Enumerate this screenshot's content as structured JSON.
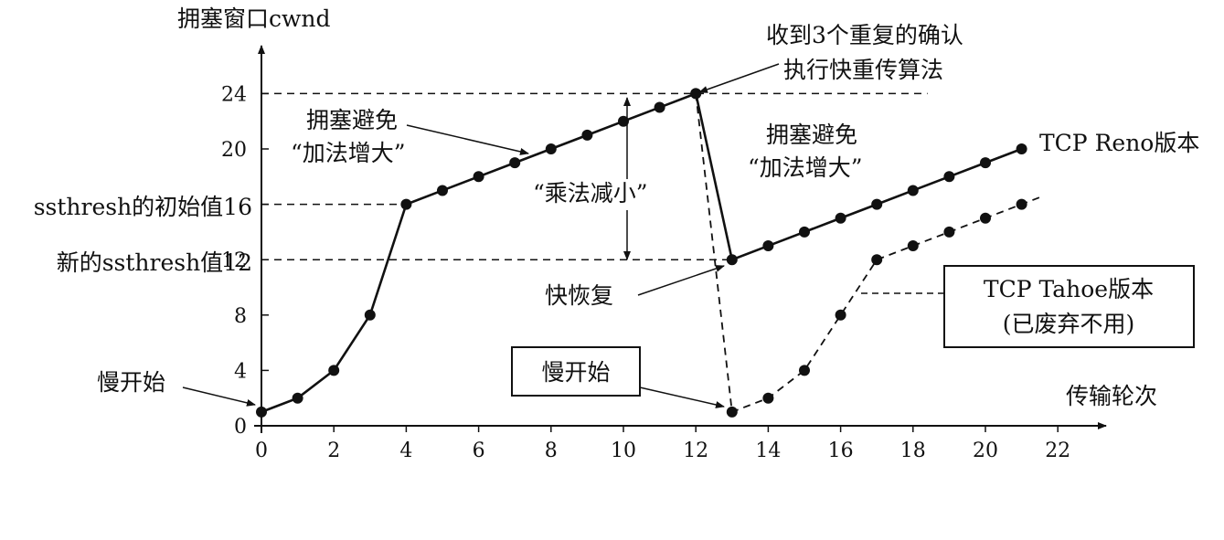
{
  "chart_data": {
    "type": "line",
    "ylabel": "拥塞窗口cwnd",
    "xlabel": "传输轮次",
    "xlim": [
      0,
      22
    ],
    "ylim": [
      0,
      24
    ],
    "xticks": [
      "0",
      "2",
      "4",
      "6",
      "8",
      "10",
      "12",
      "14",
      "16",
      "18",
      "20",
      "22"
    ],
    "yticks": [
      "0",
      "4",
      "8",
      "12",
      "20",
      "24"
    ],
    "ytick_labels_special": {
      "ssthresh_initial": "ssthresh的初始值16",
      "ssthresh_new": "新的ssthresh值12"
    },
    "series": [
      {
        "name": "TCP Reno版本",
        "style": "solid",
        "x": [
          0,
          1,
          2,
          3,
          4,
          5,
          6,
          7,
          8,
          9,
          10,
          11,
          12,
          13,
          14,
          15,
          16,
          17,
          18,
          19,
          20,
          21
        ],
        "y": [
          1,
          2,
          4,
          8,
          16,
          17,
          18,
          19,
          20,
          21,
          22,
          23,
          24,
          12,
          13,
          14,
          15,
          16,
          17,
          18,
          19,
          20
        ]
      },
      {
        "name": "TCP Tahoe版本",
        "style": "dashed",
        "x": [
          12,
          13,
          14,
          15,
          16,
          17,
          18,
          19,
          20,
          21
        ],
        "y": [
          24,
          1,
          2,
          4,
          8,
          12,
          13,
          14,
          15,
          16
        ],
        "extend_to_x": 21.6
      }
    ],
    "reference_lines": [
      {
        "y": 24,
        "x_to": 18.4
      },
      {
        "y": 16,
        "x_to": 4
      },
      {
        "y": 12,
        "x_to": 13
      }
    ],
    "annotations": {
      "slow_start_left": "慢开始",
      "ca_left_1": "拥塞避免",
      "ca_left_2": "“加法增大”",
      "md": "“乘法减小”",
      "dup_ack_1": "收到3个重复的确认",
      "dup_ack_2": "执行快重传算法",
      "ca_right_1": "拥塞避免",
      "ca_right_2": "“加法增大”",
      "fast_recovery": "快恢复",
      "slow_start_box": "慢开始",
      "reno_label": "TCP Reno版本",
      "tahoe_box_1": "TCP Tahoe版本",
      "tahoe_box_2": "(已废弃不用)"
    }
  }
}
